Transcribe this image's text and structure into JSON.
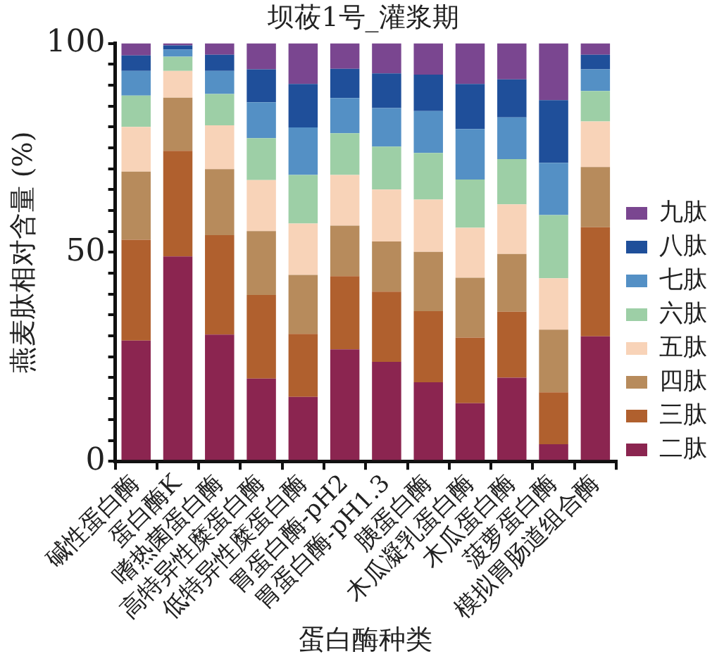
{
  "chart_data": {
    "type": "bar",
    "title": "坝莜1号_灌浆期",
    "xlabel": "蛋白酶种类",
    "ylabel": "燕麦肽相对含量 (%)",
    "stacked": true,
    "legend": "right",
    "grid": false,
    "categories": [
      "碱性蛋白酶",
      "蛋白酶K",
      "嗜热菌蛋白酶",
      "高特异性糜蛋白酶",
      "低特异性糜蛋白酶",
      "胃蛋白酶-pH2",
      "胃蛋白酶-pH1.3",
      "胰蛋白酶",
      "木瓜凝乳蛋白酶",
      "木瓜蛋白酶",
      "菠萝蛋白酶",
      "模拟胃肠道组合酶"
    ],
    "ylim": [
      0,
      100
    ],
    "yticks": [
      0,
      {
        "value": 5,
        "label": null
      },
      {
        "value": 10,
        "label": null
      },
      {
        "value": 15,
        "label": null
      },
      {
        "value": 20,
        "label": null
      },
      {
        "value": 25,
        "label": null
      },
      {
        "value": 30,
        "label": null
      },
      {
        "value": 35,
        "label": null
      },
      {
        "value": 40,
        "label": null
      },
      {
        "value": 45,
        "label": null
      },
      50,
      {
        "value": 55,
        "label": null
      },
      {
        "value": 60,
        "label": null
      },
      {
        "value": 65,
        "label": null
      },
      {
        "value": 70,
        "label": null
      },
      {
        "value": 75,
        "label": null
      },
      {
        "value": 80,
        "label": null
      },
      {
        "value": 85,
        "label": null
      },
      {
        "value": 90,
        "label": null
      },
      {
        "value": 95,
        "label": null
      },
      100
    ],
    "series": [
      {
        "name": "二肽",
        "color": "#8b2550",
        "values": [
          28.9,
          49,
          30.3,
          19.8,
          15.4,
          26.8,
          23.8,
          18.9,
          13.9,
          20,
          4.1,
          29.9
        ]
      },
      {
        "name": "三肽",
        "color": "#b0602e",
        "values": [
          24.1,
          25.3,
          23.8,
          20,
          15.1,
          17.5,
          16.8,
          17,
          15.7,
          15.8,
          12.4,
          26.1
        ]
      },
      {
        "name": "四肽",
        "color": "#b78b5c",
        "values": [
          16.3,
          12.7,
          15.8,
          15.3,
          14.1,
          12.1,
          12,
          14.2,
          14.3,
          13.8,
          15,
          14.4
        ]
      },
      {
        "name": "五肽",
        "color": "#f8d3b8",
        "values": [
          10.7,
          6.4,
          10.5,
          12.2,
          12.3,
          12.1,
          12.4,
          12.5,
          12,
          11.9,
          12.3,
          10.9
        ]
      },
      {
        "name": "六肽",
        "color": "#9dcfa6",
        "values": [
          7.5,
          3.4,
          7.5,
          10,
          11.6,
          10,
          10.3,
          11.2,
          11.5,
          10.8,
          15.1,
          7.3
        ]
      },
      {
        "name": "七肽",
        "color": "#5490c5",
        "values": [
          5.9,
          1.7,
          5.5,
          8.6,
          11.4,
          8.4,
          9.2,
          10,
          12.1,
          10,
          12.5,
          5.2
        ]
      },
      {
        "name": "八肽",
        "color": "#1f4f9a",
        "values": [
          3.7,
          1,
          3.9,
          7.9,
          10.4,
          7,
          8.3,
          8.7,
          10.8,
          9.1,
          15,
          3.5
        ]
      },
      {
        "name": "九肽",
        "color": "#7a4690",
        "values": [
          2.9,
          0.5,
          2.7,
          6.2,
          9.7,
          6.1,
          7.2,
          7.5,
          9.7,
          8.6,
          13.6,
          2.7
        ]
      }
    ]
  }
}
